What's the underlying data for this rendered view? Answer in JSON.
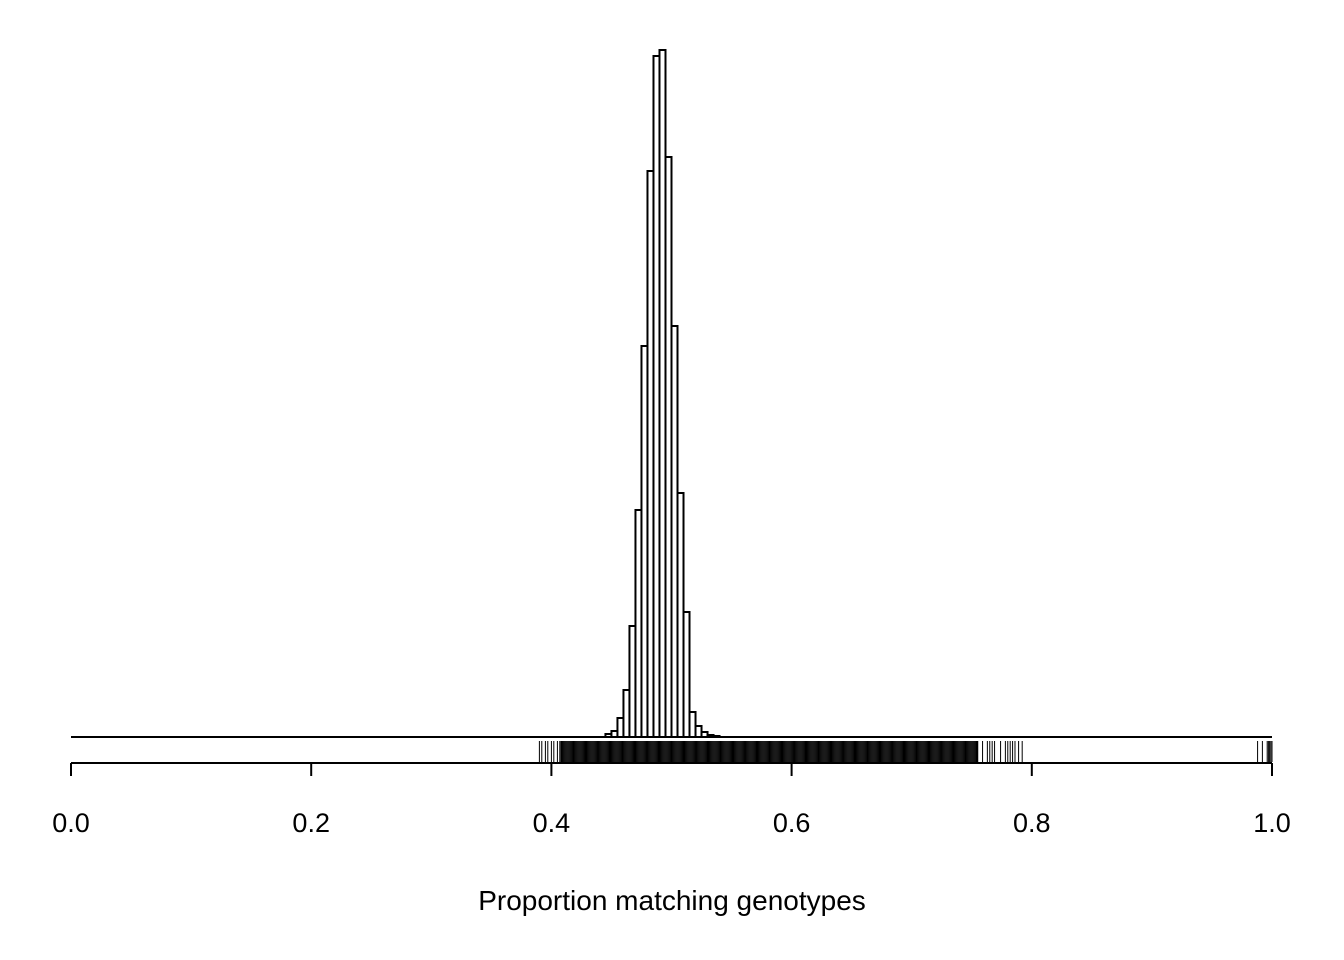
{
  "chart_data": {
    "type": "bar",
    "subtype": "histogram-with-rug",
    "title": "",
    "xlabel": "Proportion matching genotypes",
    "ylabel": "",
    "xlim": [
      0,
      1
    ],
    "x_ticks": [
      0.0,
      0.2,
      0.4,
      0.6,
      0.8,
      1.0
    ],
    "x_tick_labels": [
      "0.0",
      "0.2",
      "0.4",
      "0.6",
      "0.8",
      "1.0"
    ],
    "y_axis_shown": false,
    "grid": false,
    "bin_width": 0.005,
    "bin_starts": [
      0.445,
      0.45,
      0.455,
      0.46,
      0.465,
      0.47,
      0.475,
      0.48,
      0.485,
      0.49,
      0.495,
      0.5,
      0.505,
      0.51,
      0.515,
      0.52,
      0.525,
      0.53,
      0.535
    ],
    "relative_counts": [
      3,
      6,
      19,
      47,
      111,
      227,
      391,
      566,
      681,
      687,
      580,
      411,
      244,
      125,
      25,
      11,
      5,
      2,
      1
    ],
    "ylim": [
      0,
      687
    ],
    "rug_sparse": [
      0.39,
      0.392,
      0.395,
      0.397,
      0.4,
      0.402,
      0.405,
      0.407,
      0.754,
      0.755,
      0.759,
      0.763,
      0.765,
      0.767,
      0.769,
      0.774,
      0.778,
      0.78,
      0.782,
      0.784,
      0.786,
      0.789,
      0.792,
      0.988,
      0.992,
      0.996,
      0.997,
      0.998,
      0.999,
      1.0
    ],
    "rug_dense_range": [
      0.408,
      0.755
    ],
    "colors": {
      "bar_fill": "#ffffff",
      "bar_stroke": "#000000",
      "rug": "#000000"
    }
  }
}
